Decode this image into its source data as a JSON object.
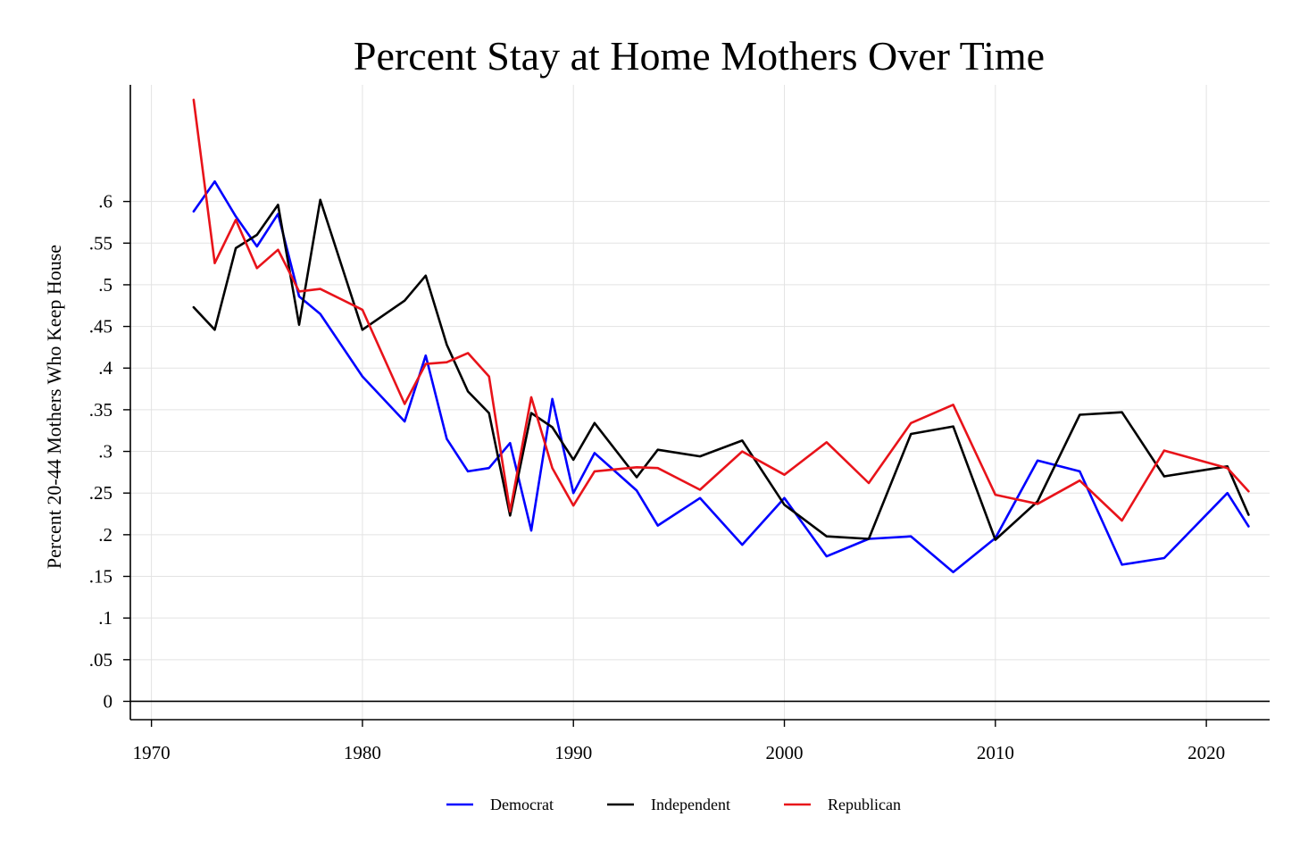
{
  "chart_data": {
    "type": "line",
    "title": "Percent Stay at Home Mothers Over Time",
    "xlabel": "",
    "ylabel": "Percent 20-44 Mothers Who Keep House",
    "xlim": [
      1969,
      2023
    ],
    "ylim": [
      -0.022,
      0.74
    ],
    "x_ticks": [
      1970,
      1980,
      1990,
      2000,
      2010,
      2020
    ],
    "x_tick_labels": [
      "1970",
      "1980",
      "1990",
      "2000",
      "2010",
      "2020"
    ],
    "y_ticks": [
      0,
      0.05,
      0.1,
      0.15,
      0.2,
      0.25,
      0.3,
      0.35,
      0.4,
      0.45,
      0.5,
      0.55,
      0.6
    ],
    "y_tick_labels": [
      "0",
      ".05",
      ".1",
      ".15",
      ".2",
      ".25",
      ".3",
      ".35",
      ".4",
      ".45",
      ".5",
      ".55",
      ".6"
    ],
    "grid": true,
    "legend_position": "bottom",
    "series": [
      {
        "name": "Democrat",
        "color": "#0000ff",
        "x": [
          1972,
          1973,
          1974,
          1975,
          1976,
          1977,
          1978,
          1980,
          1982,
          1983,
          1984,
          1985,
          1986,
          1987,
          1988,
          1989,
          1990,
          1991,
          1993,
          1994,
          1996,
          1998,
          2000,
          2002,
          2004,
          2006,
          2008,
          2010,
          2012,
          2014,
          2016,
          2018,
          2021,
          2022
        ],
        "y": [
          0.588,
          0.624,
          0.582,
          0.546,
          0.585,
          0.486,
          0.465,
          0.39,
          0.336,
          0.415,
          0.315,
          0.276,
          0.28,
          0.31,
          0.205,
          0.363,
          0.25,
          0.298,
          0.253,
          0.211,
          0.244,
          0.188,
          0.244,
          0.174,
          0.195,
          0.198,
          0.155,
          0.196,
          0.289,
          0.276,
          0.164,
          0.172,
          0.25,
          0.21
        ]
      },
      {
        "name": "Independent",
        "color": "#000000",
        "x": [
          1972,
          1973,
          1974,
          1975,
          1976,
          1977,
          1978,
          1980,
          1982,
          1983,
          1984,
          1985,
          1986,
          1987,
          1988,
          1989,
          1990,
          1991,
          1993,
          1994,
          1996,
          1998,
          2000,
          2002,
          2004,
          2006,
          2008,
          2010,
          2012,
          2014,
          2016,
          2018,
          2021,
          2022
        ],
        "y": [
          0.473,
          0.446,
          0.544,
          0.56,
          0.596,
          0.452,
          0.602,
          0.446,
          0.481,
          0.511,
          0.428,
          0.372,
          0.346,
          0.223,
          0.346,
          0.329,
          0.29,
          0.334,
          0.269,
          0.302,
          0.294,
          0.313,
          0.236,
          0.198,
          0.195,
          0.321,
          0.33,
          0.194,
          0.24,
          0.344,
          0.347,
          0.27,
          0.282,
          0.224
        ]
      },
      {
        "name": "Republican",
        "color": "#e8131a",
        "x": [
          1972,
          1973,
          1974,
          1975,
          1976,
          1977,
          1978,
          1980,
          1982,
          1983,
          1984,
          1985,
          1986,
          1987,
          1988,
          1989,
          1990,
          1991,
          1993,
          1994,
          1996,
          1998,
          2000,
          2002,
          2004,
          2006,
          2008,
          2010,
          2012,
          2014,
          2016,
          2018,
          2021,
          2022
        ],
        "y": [
          0.722,
          0.526,
          0.578,
          0.52,
          0.542,
          0.492,
          0.495,
          0.47,
          0.357,
          0.405,
          0.407,
          0.418,
          0.39,
          0.228,
          0.365,
          0.28,
          0.235,
          0.276,
          0.281,
          0.28,
          0.254,
          0.3,
          0.272,
          0.311,
          0.262,
          0.334,
          0.356,
          0.248,
          0.237,
          0.265,
          0.217,
          0.301,
          0.28,
          0.252
        ]
      }
    ]
  }
}
